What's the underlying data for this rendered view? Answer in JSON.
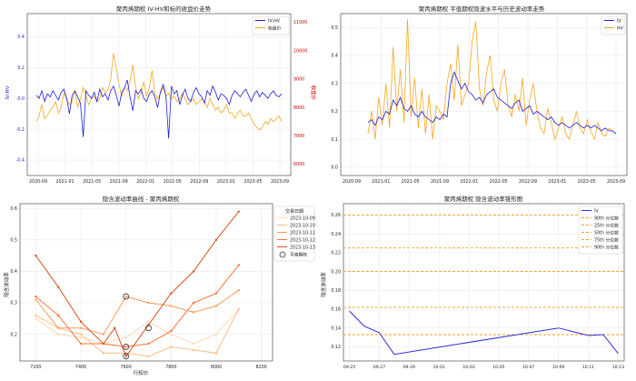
{
  "chart_data": [
    {
      "type": "line",
      "title": "聚丙烯期权 IV-HV和标的收盘价走势",
      "ylabel_left": "IV-HV",
      "ylabel_right": "收盘价",
      "x_ticks": [
        "2020-09",
        "2021-01",
        "2021-05",
        "2021-09",
        "2022-01",
        "2022-05",
        "2022-09",
        "2023-01",
        "2023-05",
        "2023-09"
      ],
      "y_left_ticks": [
        "0.4",
        "0.2",
        "0.0",
        "-0.2",
        "-0.4"
      ],
      "y_right_ticks": [
        "11000",
        "10000",
        "9000",
        "8000",
        "7000",
        "6000"
      ],
      "y_left_range": [
        -0.5,
        0.55
      ],
      "y_right_range": [
        5600,
        11300
      ],
      "grid": true,
      "legend": "top-right",
      "series": [
        {
          "name": "IV-HV",
          "axis": "left",
          "color": "#1f1fd6",
          "values": [
            0.02,
            0.0,
            0.05,
            -0.02,
            0.03,
            0.01,
            0.05,
            0.02,
            -0.01,
            0.04,
            0.06,
            0.0,
            -0.1,
            0.02,
            0.05,
            0.01,
            -0.03,
            -0.25,
            0.05,
            0.02,
            0.0,
            0.04,
            -0.02,
            0.06,
            0.01,
            0.03,
            -0.01,
            0.05,
            0.08,
            0.02,
            -0.05,
            0.04,
            0.07,
            0.12,
            0.01,
            -0.08,
            0.05,
            0.03,
            0.06,
            0.0,
            -0.02,
            0.03,
            0.05,
            0.01,
            -0.06,
            0.04,
            0.09,
            0.02,
            -0.26,
            0.08,
            0.03,
            0.05,
            -0.04,
            0.02,
            0.06,
            0.0,
            -0.02,
            0.04,
            0.07,
            0.03,
            0.01,
            -0.03,
            0.05,
            0.02,
            0.08,
            0.04,
            -0.01,
            0.03,
            0.02,
            0.0,
            -0.04,
            0.02,
            0.05,
            0.03,
            0.01,
            0.04,
            0.06,
            0.02,
            -0.02,
            0.03,
            0.05,
            0.01,
            0.04,
            0.02,
            0.0,
            0.03,
            0.05,
            0.02,
            0.01,
            0.03
          ]
        },
        {
          "name": "收盘价",
          "axis": "right",
          "color": "#f5a623",
          "values": [
            7500,
            7700,
            8100,
            7600,
            7700,
            7900,
            8000,
            8200,
            7800,
            8000,
            8500,
            8300,
            8100,
            8200,
            8600,
            8000,
            8300,
            8700,
            8400,
            8100,
            8300,
            8400,
            8200,
            8300,
            8700,
            8500,
            8600,
            9000,
            9900,
            9400,
            8800,
            8400,
            8700,
            8600,
            8900,
            9500,
            8700,
            8300,
            8500,
            8900,
            8400,
            8700,
            9300,
            8500,
            8300,
            8500,
            8700,
            8400,
            8500,
            8300,
            8400,
            8200,
            8300,
            8500,
            8300,
            8100,
            8200,
            8300,
            8100,
            8200,
            8300,
            8200,
            8000,
            8300,
            8100,
            7900,
            8000,
            7800,
            7900,
            8100,
            7800,
            7800,
            7600,
            7800,
            7900,
            7700,
            7700,
            7800,
            7600,
            7400,
            7300,
            7200,
            7300,
            7500,
            7400,
            7600,
            7500,
            7600,
            7700,
            7500
          ]
        }
      ]
    },
    {
      "type": "line",
      "title": "聚丙烯期权 平值期权隐波水平与历史波动率走势",
      "x_ticks": [
        "2020-09",
        "2021-01",
        "2021-05",
        "2021-09",
        "2022-01",
        "2022-05",
        "2022-09",
        "2023-01",
        "2023-05",
        "2023-09"
      ],
      "y_ticks": [
        "0.5",
        "0.4",
        "0.3",
        "0.2",
        "0.1",
        "0.0"
      ],
      "y_range": [
        -0.03,
        0.55
      ],
      "grid": true,
      "legend": "top-right",
      "series": [
        {
          "name": "IV",
          "color": "#1f1fd6",
          "values": [
            0.16,
            0.17,
            0.15,
            0.18,
            0.17,
            0.2,
            0.19,
            0.24,
            0.22,
            0.25,
            0.21,
            0.2,
            0.22,
            0.19,
            0.18,
            0.2,
            0.18,
            0.17,
            0.16,
            0.18,
            0.17,
            0.19,
            0.18,
            0.3,
            0.34,
            0.31,
            0.28,
            0.3,
            0.27,
            0.26,
            0.24,
            0.25,
            0.23,
            0.26,
            0.27,
            0.28,
            0.25,
            0.24,
            0.23,
            0.22,
            0.21,
            0.23,
            0.24,
            0.2,
            0.21,
            0.22,
            0.19,
            0.2,
            0.19,
            0.18,
            0.17,
            0.18,
            0.16,
            0.15,
            0.16,
            0.15,
            0.14,
            0.15,
            0.16,
            0.15,
            0.14,
            0.15,
            0.14,
            0.15,
            0.14,
            0.13,
            0.14,
            0.13,
            0.13,
            0.12
          ]
        },
        {
          "name": "HV",
          "color": "#f5a623",
          "values": [
            0.12,
            0.2,
            0.1,
            0.25,
            0.15,
            0.3,
            0.14,
            0.43,
            0.2,
            0.35,
            0.16,
            0.53,
            0.18,
            0.32,
            0.14,
            0.28,
            0.12,
            0.26,
            0.1,
            0.22,
            0.2,
            0.17,
            0.3,
            0.37,
            0.24,
            0.44,
            0.22,
            0.26,
            0.3,
            0.45,
            0.52,
            0.28,
            0.22,
            0.34,
            0.4,
            0.24,
            0.2,
            0.3,
            0.35,
            0.22,
            0.18,
            0.26,
            0.2,
            0.32,
            0.15,
            0.24,
            0.3,
            0.2,
            0.14,
            0.12,
            0.21,
            0.16,
            0.1,
            0.14,
            0.18,
            0.12,
            0.1,
            0.15,
            0.2,
            0.14,
            0.12,
            0.17,
            0.13,
            0.1,
            0.16,
            0.12,
            0.11,
            0.14,
            0.13,
            0.12
          ]
        }
      ]
    },
    {
      "type": "line",
      "title": "隐含波动率曲线 - 聚丙烯期权",
      "xlabel": "行权价",
      "ylabel": "隐含波动率",
      "x_ticks": [
        7200,
        7400,
        7600,
        7800,
        8000,
        8200
      ],
      "y_ticks": [
        0.2,
        0.3,
        0.4,
        0.5,
        0.6
      ],
      "x_range": [
        7130,
        8250
      ],
      "y_range": [
        0.115,
        0.615
      ],
      "grid": true,
      "legend": "top-right",
      "legend_title": "交易日期",
      "atm_label": "平值期权",
      "series": [
        {
          "name": "2023-10-09",
          "color": "#fdd9b5",
          "x": [
            7200,
            7300,
            7400,
            7500,
            7600,
            7700,
            7800,
            7900,
            8000,
            8100
          ],
          "values": [
            0.25,
            0.2,
            0.19,
            0.17,
            0.19,
            0.24,
            0.2,
            0.17,
            0.2,
            0.28
          ]
        },
        {
          "name": "2023-10-10",
          "color": "#fdbe85",
          "x": [
            7200,
            7300,
            7400,
            7500,
            7600,
            7700,
            7800,
            7900,
            8000,
            8100
          ],
          "values": [
            0.26,
            0.22,
            0.2,
            0.14,
            0.14,
            0.13,
            0.16,
            0.15,
            0.14,
            0.28
          ]
        },
        {
          "name": "2023-10-11",
          "color": "#fd9a55",
          "x": [
            7200,
            7300,
            7400,
            7500,
            7600,
            7700,
            7800,
            7900,
            8000,
            8100
          ],
          "values": [
            0.31,
            0.22,
            0.22,
            0.2,
            0.32,
            0.3,
            0.29,
            0.27,
            0.29,
            0.34
          ]
        },
        {
          "name": "2023-10-12",
          "color": "#f0743a",
          "x": [
            7200,
            7300,
            7400,
            7500,
            7600,
            7700,
            7800,
            7900,
            8000,
            8100
          ],
          "values": [
            0.32,
            0.26,
            0.17,
            0.17,
            0.16,
            0.17,
            0.21,
            0.3,
            0.33,
            0.42
          ]
        },
        {
          "name": "2023-10-13",
          "color": "#d9531e",
          "x": [
            7200,
            7300,
            7400,
            7500,
            7550,
            7600,
            7700,
            7800,
            7900,
            8000,
            8100
          ],
          "values": [
            0.45,
            0.35,
            0.24,
            0.17,
            0.22,
            0.13,
            0.23,
            0.33,
            0.4,
            0.5,
            0.59
          ]
        }
      ],
      "atm_points": [
        {
          "x": 7600,
          "y": 0.32
        },
        {
          "x": 7600,
          "y": 0.16
        },
        {
          "x": 7600,
          "y": 0.13
        },
        {
          "x": 7700,
          "y": 0.22
        }
      ]
    },
    {
      "type": "line",
      "title": "聚丙烯期权 隐含波动率锥形图",
      "ylabel": "隐含波动率",
      "x_ticks": [
        "09-25",
        "09-27",
        "09-29",
        "10-01",
        "10-03",
        "10-05",
        "10-07",
        "10-09",
        "10-11",
        "10-13"
      ],
      "y_ticks": [
        "0.26",
        "0.24",
        "0.22",
        "0.20",
        "0.18",
        "0.16",
        "0.14",
        "0.12"
      ],
      "x_range_days": [
        -0.4,
        18.4
      ],
      "y_range": [
        0.105,
        0.272
      ],
      "grid": true,
      "legend": "top-right",
      "series": [
        {
          "name": "IV",
          "color": "#2e2ee0",
          "x_days": [
            0,
            1,
            2,
            3,
            14,
            16,
            17,
            18
          ],
          "values": [
            0.158,
            0.142,
            0.135,
            0.112,
            0.14,
            0.132,
            0.133,
            0.113
          ]
        }
      ],
      "hlines": [
        {
          "name": "90th 分位数",
          "value": 0.26,
          "color": "#f0a020"
        },
        {
          "name": "25th 分位数",
          "value": 0.225,
          "color": "#f0a020"
        },
        {
          "name": "50th 分位数",
          "value": 0.2,
          "color": "#f0a020"
        },
        {
          "name": "75th 分位数",
          "value": 0.162,
          "color": "#f0a020"
        },
        {
          "name": "90th 分位数",
          "value": 0.133,
          "color": "#f0a020"
        }
      ]
    }
  ]
}
